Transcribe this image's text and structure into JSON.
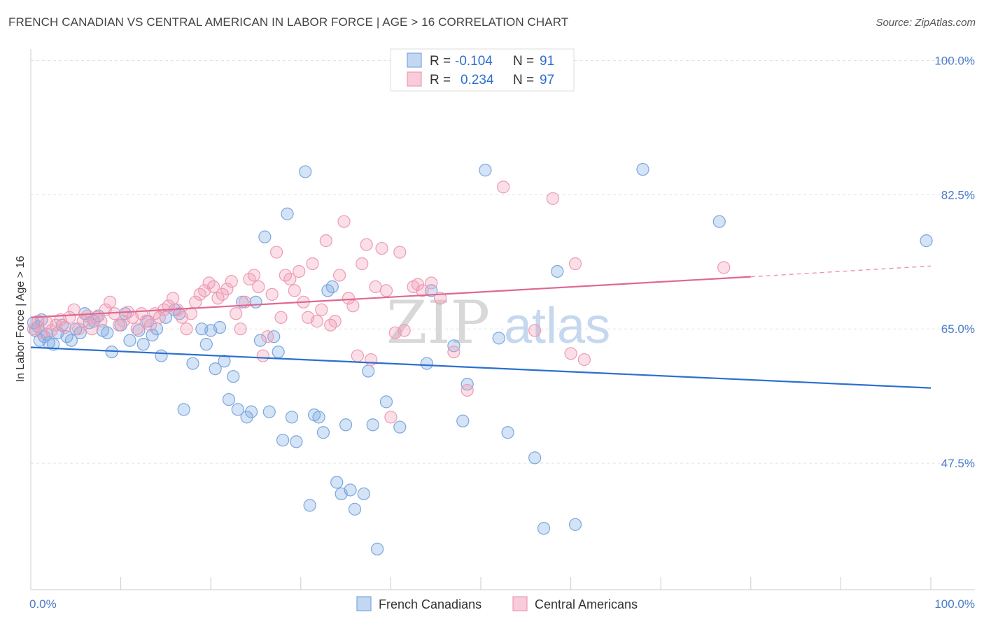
{
  "header": {
    "title": "FRENCH CANADIAN VS CENTRAL AMERICAN IN LABOR FORCE | AGE > 16 CORRELATION CHART",
    "source": "Source: ZipAtlas.com"
  },
  "watermark": {
    "zip": "ZIP",
    "atlas": "atlas"
  },
  "legend": {
    "rows": [
      {
        "r_label": "R =",
        "r_value": "-0.104",
        "n_label": "N =",
        "n_value": "91",
        "color": "#7aa7e0"
      },
      {
        "r_label": "R =",
        "r_value": "0.234",
        "n_label": "N =",
        "n_value": "97",
        "color": "#ef9ab5"
      }
    ]
  },
  "bottom_legend": {
    "items": [
      "French Canadians",
      "Central Americans"
    ]
  },
  "chart_data": {
    "type": "scatter",
    "title": "FRENCH CANADIAN VS CENTRAL AMERICAN IN LABOR FORCE | AGE > 16 CORRELATION CHART",
    "xlabel": "",
    "ylabel": "In Labor Force | Age > 16",
    "xlim": [
      0,
      100
    ],
    "ylim": [
      31,
      101.5
    ],
    "x_tick_labels": [
      "0.0%",
      "100.0%"
    ],
    "y_ticks": [
      47.5,
      65.0,
      82.5,
      100.0
    ],
    "y_tick_labels": [
      "47.5%",
      "65.0%",
      "82.5%",
      "100.0%"
    ],
    "grid": true,
    "legend_position": "top-center",
    "series": [
      {
        "name": "French Canadians",
        "color": "#7aa7e0",
        "trend_color": "#2b6fd0",
        "r": -0.104,
        "n": 91,
        "trend": {
          "x": [
            0,
            100
          ],
          "y": [
            62.6,
            57.3
          ]
        },
        "points": [
          [
            0.5,
            64.8
          ],
          [
            0.8,
            65.3
          ],
          [
            1.0,
            63.5
          ],
          [
            1.2,
            66.2
          ],
          [
            1.5,
            64.0
          ],
          [
            2.0,
            63.2
          ],
          [
            2.5,
            63.0
          ],
          [
            3.0,
            64.5
          ],
          [
            3.5,
            65.5
          ],
          [
            4.0,
            64.0
          ],
          [
            4.5,
            63.5
          ],
          [
            5.0,
            65.0
          ],
          [
            5.5,
            64.5
          ],
          [
            6.0,
            67.0
          ],
          [
            6.5,
            65.8
          ],
          [
            7.0,
            66.0
          ],
          [
            8.0,
            64.8
          ],
          [
            8.5,
            64.5
          ],
          [
            9.0,
            62.0
          ],
          [
            10.0,
            65.5
          ],
          [
            10.5,
            67.0
          ],
          [
            11.0,
            63.5
          ],
          [
            12.0,
            64.8
          ],
          [
            12.5,
            63.0
          ],
          [
            13.0,
            66.0
          ],
          [
            13.5,
            64.2
          ],
          [
            14.0,
            65.0
          ],
          [
            14.5,
            61.5
          ],
          [
            15.0,
            66.5
          ],
          [
            16.0,
            67.5
          ],
          [
            16.5,
            67.0
          ],
          [
            17.0,
            54.5
          ],
          [
            18.0,
            60.5
          ],
          [
            19.0,
            65.0
          ],
          [
            19.5,
            63.0
          ],
          [
            20.0,
            64.8
          ],
          [
            20.5,
            59.8
          ],
          [
            21.0,
            65.2
          ],
          [
            21.5,
            60.8
          ],
          [
            22.0,
            55.8
          ],
          [
            22.5,
            58.8
          ],
          [
            23.0,
            54.5
          ],
          [
            23.5,
            68.5
          ],
          [
            24.0,
            53.5
          ],
          [
            24.5,
            54.2
          ],
          [
            25.0,
            68.5
          ],
          [
            25.5,
            63.5
          ],
          [
            26.0,
            77.0
          ],
          [
            26.5,
            54.2
          ],
          [
            27.0,
            64.0
          ],
          [
            27.5,
            62.0
          ],
          [
            28.0,
            50.5
          ],
          [
            28.5,
            80.0
          ],
          [
            29.0,
            53.5
          ],
          [
            29.5,
            50.3
          ],
          [
            30.5,
            85.5
          ],
          [
            31.0,
            42.0
          ],
          [
            31.5,
            53.8
          ],
          [
            32.0,
            53.5
          ],
          [
            32.5,
            51.5
          ],
          [
            33.0,
            70.0
          ],
          [
            33.5,
            70.5
          ],
          [
            34.0,
            45.0
          ],
          [
            34.5,
            43.5
          ],
          [
            35.0,
            52.5
          ],
          [
            35.5,
            44.0
          ],
          [
            36.0,
            41.5
          ],
          [
            37.0,
            43.5
          ],
          [
            37.5,
            59.5
          ],
          [
            38.0,
            52.5
          ],
          [
            38.5,
            36.3
          ],
          [
            39.5,
            55.5
          ],
          [
            41.0,
            52.2
          ],
          [
            44.0,
            60.5
          ],
          [
            44.5,
            70.0
          ],
          [
            47.0,
            62.8
          ],
          [
            48.0,
            53.0
          ],
          [
            48.5,
            57.8
          ],
          [
            50.5,
            85.7
          ],
          [
            52.0,
            63.8
          ],
          [
            53.0,
            51.5
          ],
          [
            56.0,
            48.2
          ],
          [
            57.0,
            39.0
          ],
          [
            58.5,
            72.5
          ],
          [
            60.5,
            39.5
          ],
          [
            68.0,
            85.8
          ],
          [
            76.5,
            79.0
          ],
          [
            99.5,
            76.5
          ],
          [
            0.3,
            65.8
          ],
          [
            1.8,
            64.3
          ],
          [
            7.5,
            66.7
          ]
        ]
      },
      {
        "name": "Central Americans",
        "color": "#ef9ab5",
        "trend_color": "#e06890",
        "r": 0.234,
        "n": 97,
        "trend": {
          "x": [
            0,
            80
          ],
          "y": [
            66.5,
            71.8
          ]
        },
        "trend_dashed": {
          "x": [
            80,
            100
          ],
          "y": [
            71.8,
            73.2
          ]
        },
        "points": [
          [
            0.3,
            65.0
          ],
          [
            0.8,
            66.0
          ],
          [
            1.2,
            64.5
          ],
          [
            1.8,
            65.8
          ],
          [
            2.3,
            64.8
          ],
          [
            2.8,
            65.5
          ],
          [
            3.3,
            66.2
          ],
          [
            3.8,
            65.2
          ],
          [
            4.3,
            66.5
          ],
          [
            4.8,
            67.5
          ],
          [
            5.3,
            65.0
          ],
          [
            5.8,
            66.0
          ],
          [
            6.3,
            66.7
          ],
          [
            6.8,
            65.0
          ],
          [
            7.3,
            66.5
          ],
          [
            7.8,
            66.0
          ],
          [
            8.3,
            67.5
          ],
          [
            8.8,
            68.5
          ],
          [
            9.3,
            67.0
          ],
          [
            9.8,
            65.5
          ],
          [
            10.3,
            66.0
          ],
          [
            10.8,
            67.2
          ],
          [
            11.3,
            66.5
          ],
          [
            11.8,
            65.0
          ],
          [
            12.3,
            67.0
          ],
          [
            12.8,
            66.0
          ],
          [
            13.3,
            65.5
          ],
          [
            13.8,
            67.0
          ],
          [
            14.3,
            66.5
          ],
          [
            14.8,
            67.5
          ],
          [
            15.3,
            68.0
          ],
          [
            15.8,
            69.0
          ],
          [
            16.3,
            67.5
          ],
          [
            16.8,
            66.5
          ],
          [
            17.3,
            65.0
          ],
          [
            17.8,
            67.0
          ],
          [
            18.3,
            68.5
          ],
          [
            18.8,
            69.5
          ],
          [
            19.3,
            70.0
          ],
          [
            19.8,
            71.0
          ],
          [
            20.3,
            70.5
          ],
          [
            20.8,
            69.0
          ],
          [
            21.3,
            69.5
          ],
          [
            21.8,
            70.2
          ],
          [
            22.3,
            71.2
          ],
          [
            22.8,
            67.0
          ],
          [
            23.3,
            65.0
          ],
          [
            23.8,
            68.5
          ],
          [
            24.3,
            71.5
          ],
          [
            24.8,
            72.0
          ],
          [
            25.3,
            70.5
          ],
          [
            25.8,
            61.5
          ],
          [
            26.3,
            64.0
          ],
          [
            26.8,
            69.5
          ],
          [
            27.3,
            75.0
          ],
          [
            27.8,
            66.5
          ],
          [
            28.3,
            72.0
          ],
          [
            28.8,
            71.5
          ],
          [
            29.3,
            70.0
          ],
          [
            29.8,
            72.5
          ],
          [
            30.3,
            68.5
          ],
          [
            30.8,
            66.5
          ],
          [
            31.3,
            73.5
          ],
          [
            31.8,
            66.0
          ],
          [
            32.3,
            67.5
          ],
          [
            32.8,
            76.5
          ],
          [
            33.3,
            65.5
          ],
          [
            33.8,
            66.0
          ],
          [
            34.3,
            72.0
          ],
          [
            34.8,
            79.0
          ],
          [
            35.3,
            69.0
          ],
          [
            35.8,
            68.0
          ],
          [
            36.3,
            61.5
          ],
          [
            36.8,
            73.5
          ],
          [
            37.3,
            76.0
          ],
          [
            37.8,
            61.0
          ],
          [
            38.3,
            70.5
          ],
          [
            39.0,
            75.5
          ],
          [
            39.5,
            70.0
          ],
          [
            40.0,
            53.5
          ],
          [
            40.5,
            64.5
          ],
          [
            41.0,
            75.0
          ],
          [
            41.5,
            64.8
          ],
          [
            42.5,
            70.5
          ],
          [
            43.0,
            70.8
          ],
          [
            43.5,
            70.0
          ],
          [
            44.5,
            71.0
          ],
          [
            45.5,
            69.0
          ],
          [
            47.0,
            62.0
          ],
          [
            48.5,
            57.0
          ],
          [
            52.5,
            83.5
          ],
          [
            56.0,
            64.8
          ],
          [
            58.0,
            82.0
          ],
          [
            60.0,
            61.8
          ],
          [
            60.5,
            73.5
          ],
          [
            61.5,
            61.0
          ],
          [
            77.0,
            73.0
          ]
        ]
      }
    ]
  }
}
